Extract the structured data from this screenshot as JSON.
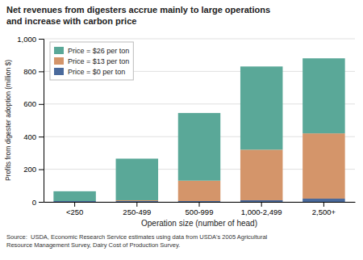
{
  "chart_data": {
    "type": "bar",
    "stacked": true,
    "title": "Net revenues from digesters accrue mainly to large operations\nand increase with carbon price",
    "xlabel": "Operation size (number of head)",
    "ylabel": "Profits from digester adoption (million $)",
    "annotations": [
      "Source:  USDA, Economic Research Service estimates using data from USDA's 2005 Agricultural\nResource Management Survey, Dairy Cost of Production Survey."
    ],
    "categories": [
      "<250",
      "250-499",
      "500-999",
      "1,000-2,499",
      "2,500+"
    ],
    "series": [
      {
        "name": "Price = $0 per ton",
        "color": "#4A6A9C",
        "values": [
          5,
          5,
          5,
          10,
          20
        ]
      },
      {
        "name": "Price = $13 per ton",
        "color": "#D4956A",
        "values": [
          0,
          5,
          125,
          310,
          400
        ]
      },
      {
        "name": "Price = $26 per ton",
        "color": "#5aA898",
        "values": [
          60,
          255,
          415,
          510,
          460
        ]
      }
    ],
    "ylim": [
      0,
      1000
    ],
    "yticks": [
      0,
      200,
      400,
      600,
      800,
      {
        "value": 1000,
        "label": "1,000"
      }
    ],
    "grid": true,
    "legend": "upper left"
  }
}
